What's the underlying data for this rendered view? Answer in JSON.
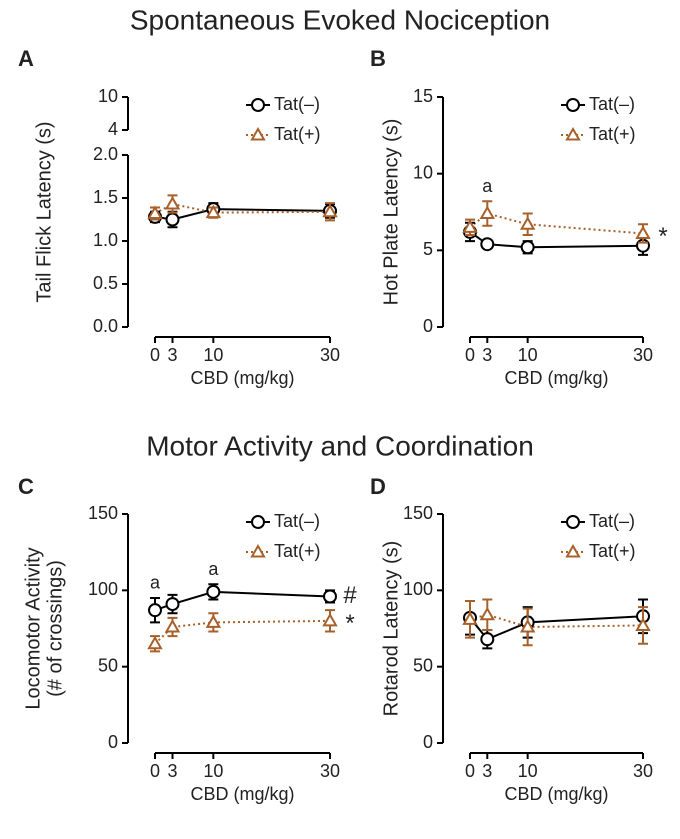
{
  "headings": [
    "Spontaneous Evoked Nociception",
    "Motor Activity and Coordination"
  ],
  "chart_data": [
    {
      "type": "line",
      "panel": "A",
      "ylabel": [
        "Tail Flick Latency (s)"
      ],
      "xlabel": "CBD (mg/kg)",
      "x": [
        0,
        3,
        10,
        30
      ],
      "xlim": [
        0,
        30
      ],
      "xticks": [
        0,
        3,
        10,
        30
      ],
      "ylim": [
        0,
        2
      ],
      "yticks": [
        {
          "value": 0,
          "label": "0.0"
        },
        0.5,
        {
          "value": 1,
          "label": "1.0"
        },
        1.5,
        {
          "value": 2,
          "label": "2.0"
        }
      ],
      "ybreak": {
        "ylim": [
          4,
          10
        ],
        "yticks": [
          4,
          10
        ]
      },
      "series": [
        {
          "name": "Tat(–)",
          "color": "#000000",
          "marker": "circle",
          "line_style": "solid",
          "values": [
            1.28,
            1.25,
            1.37,
            1.35
          ],
          "errors": [
            0.06,
            0.09,
            0.07,
            0.08
          ]
        },
        {
          "name": "Tat(+)",
          "color": "#a8602a",
          "marker": "triangle",
          "line_style": "dotted",
          "values": [
            1.32,
            1.43,
            1.33,
            1.34
          ],
          "errors": [
            0.07,
            0.1,
            0.06,
            0.1
          ]
        }
      ]
    },
    {
      "type": "line",
      "panel": "B",
      "ylabel": [
        "Hot Plate Latency (s)"
      ],
      "xlabel": "CBD (mg/kg)",
      "x": [
        0,
        3,
        10,
        30
      ],
      "xlim": [
        0,
        30
      ],
      "xticks": [
        0,
        3,
        10,
        30
      ],
      "ylim": [
        0,
        15
      ],
      "yticks": [
        0,
        5,
        10,
        15
      ],
      "series": [
        {
          "name": "Tat(–)",
          "color": "#000000",
          "marker": "circle",
          "line_style": "solid",
          "values": [
            6.2,
            5.4,
            5.2,
            5.3
          ],
          "errors": [
            0.6,
            0.1,
            0.4,
            0.6
          ]
        },
        {
          "name": "Tat(+)",
          "color": "#a8602a",
          "marker": "triangle",
          "line_style": "dotted",
          "values": [
            6.5,
            7.4,
            6.7,
            6.1
          ],
          "errors": [
            0.5,
            0.8,
            0.7,
            0.6
          ],
          "point_notes": [
            null,
            "a",
            null,
            null
          ],
          "end_note": "*"
        }
      ]
    },
    {
      "type": "line",
      "panel": "C",
      "ylabel": [
        "Locomotor Activity",
        "(# of crossings)"
      ],
      "xlabel": "CBD (mg/kg)",
      "x": [
        0,
        3,
        10,
        30
      ],
      "xlim": [
        0,
        30
      ],
      "xticks": [
        0,
        3,
        10,
        30
      ],
      "ylim": [
        0,
        150
      ],
      "yticks": [
        0,
        50,
        100,
        150
      ],
      "series": [
        {
          "name": "Tat(–)",
          "color": "#000000",
          "marker": "circle",
          "line_style": "solid",
          "values": [
            87,
            91,
            99,
            96
          ],
          "errors": [
            8,
            6,
            5,
            4
          ],
          "point_notes": [
            "a",
            null,
            "a",
            null
          ],
          "end_note": "#"
        },
        {
          "name": "Tat(+)",
          "color": "#a8602a",
          "marker": "triangle",
          "line_style": "dotted",
          "values": [
            65,
            76,
            79,
            80
          ],
          "errors": [
            5,
            6,
            6,
            7
          ],
          "end_note": "*"
        }
      ]
    },
    {
      "type": "line",
      "panel": "D",
      "ylabel": [
        "Rotarod Latency (s)"
      ],
      "xlabel": "CBD (mg/kg)",
      "x": [
        0,
        3,
        10,
        30
      ],
      "xlim": [
        0,
        30
      ],
      "xticks": [
        0,
        3,
        10,
        30
      ],
      "ylim": [
        0,
        150
      ],
      "yticks": [
        0,
        50,
        100,
        150
      ],
      "series": [
        {
          "name": "Tat(–)",
          "color": "#000000",
          "marker": "circle",
          "line_style": "solid",
          "values": [
            82,
            68,
            79,
            83
          ],
          "errors": [
            11,
            6,
            10,
            11
          ]
        },
        {
          "name": "Tat(+)",
          "color": "#a8602a",
          "marker": "triangle",
          "line_style": "dotted",
          "values": [
            81,
            84,
            76,
            77
          ],
          "errors": [
            12,
            10,
            12,
            12
          ]
        }
      ]
    }
  ]
}
